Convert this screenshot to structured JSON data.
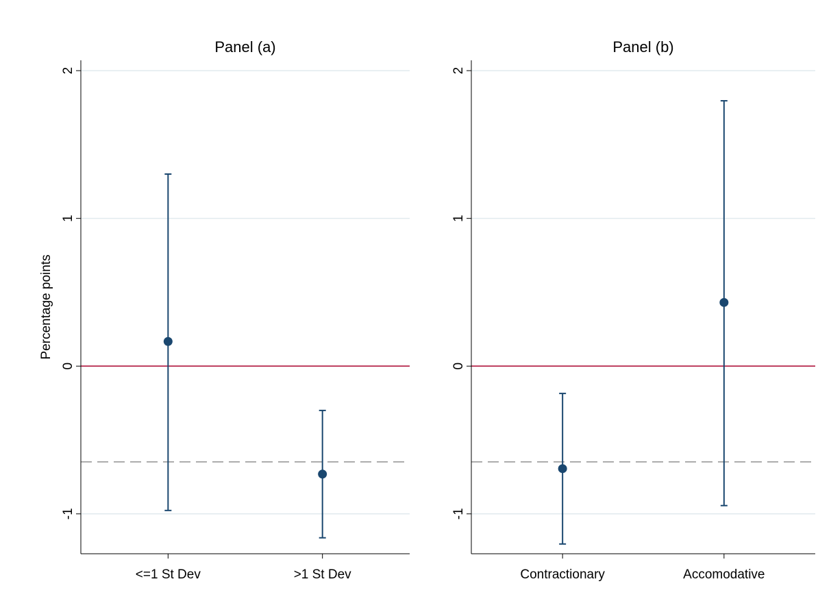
{
  "chart_data": [
    {
      "type": "errorbar",
      "title": "Panel (a)",
      "y_label": "Percentage points",
      "categories": [
        "<=1 St Dev",
        ">1 St Dev"
      ],
      "values": [
        0.167,
        -0.731
      ],
      "lower": [
        -0.977,
        -1.162
      ],
      "upper": [
        1.3,
        -0.3
      ],
      "color": "#1a476f",
      "ylim": [
        -1.27,
        2.07
      ],
      "yticks": [
        -1,
        0,
        1,
        2
      ],
      "grid": true,
      "hlines": [
        {
          "value": 0,
          "color": "#b0163e",
          "style": "solid"
        },
        {
          "value": -0.648,
          "color": "#999999",
          "style": "dashed"
        }
      ]
    },
    {
      "type": "errorbar",
      "title": "Panel (b)",
      "categories": [
        "Contractionary",
        "Accomodative"
      ],
      "values": [
        -0.694,
        0.431
      ],
      "lower": [
        -1.204,
        -0.944
      ],
      "upper": [
        -0.185,
        1.796
      ],
      "color": "#1a476f",
      "ylim": [
        -1.27,
        2.07
      ],
      "yticks": [
        -1,
        0,
        1,
        2
      ],
      "grid": true,
      "hlines": [
        {
          "value": 0,
          "color": "#b0163e",
          "style": "solid"
        },
        {
          "value": -0.648,
          "color": "#999999",
          "style": "dashed"
        }
      ]
    }
  ]
}
